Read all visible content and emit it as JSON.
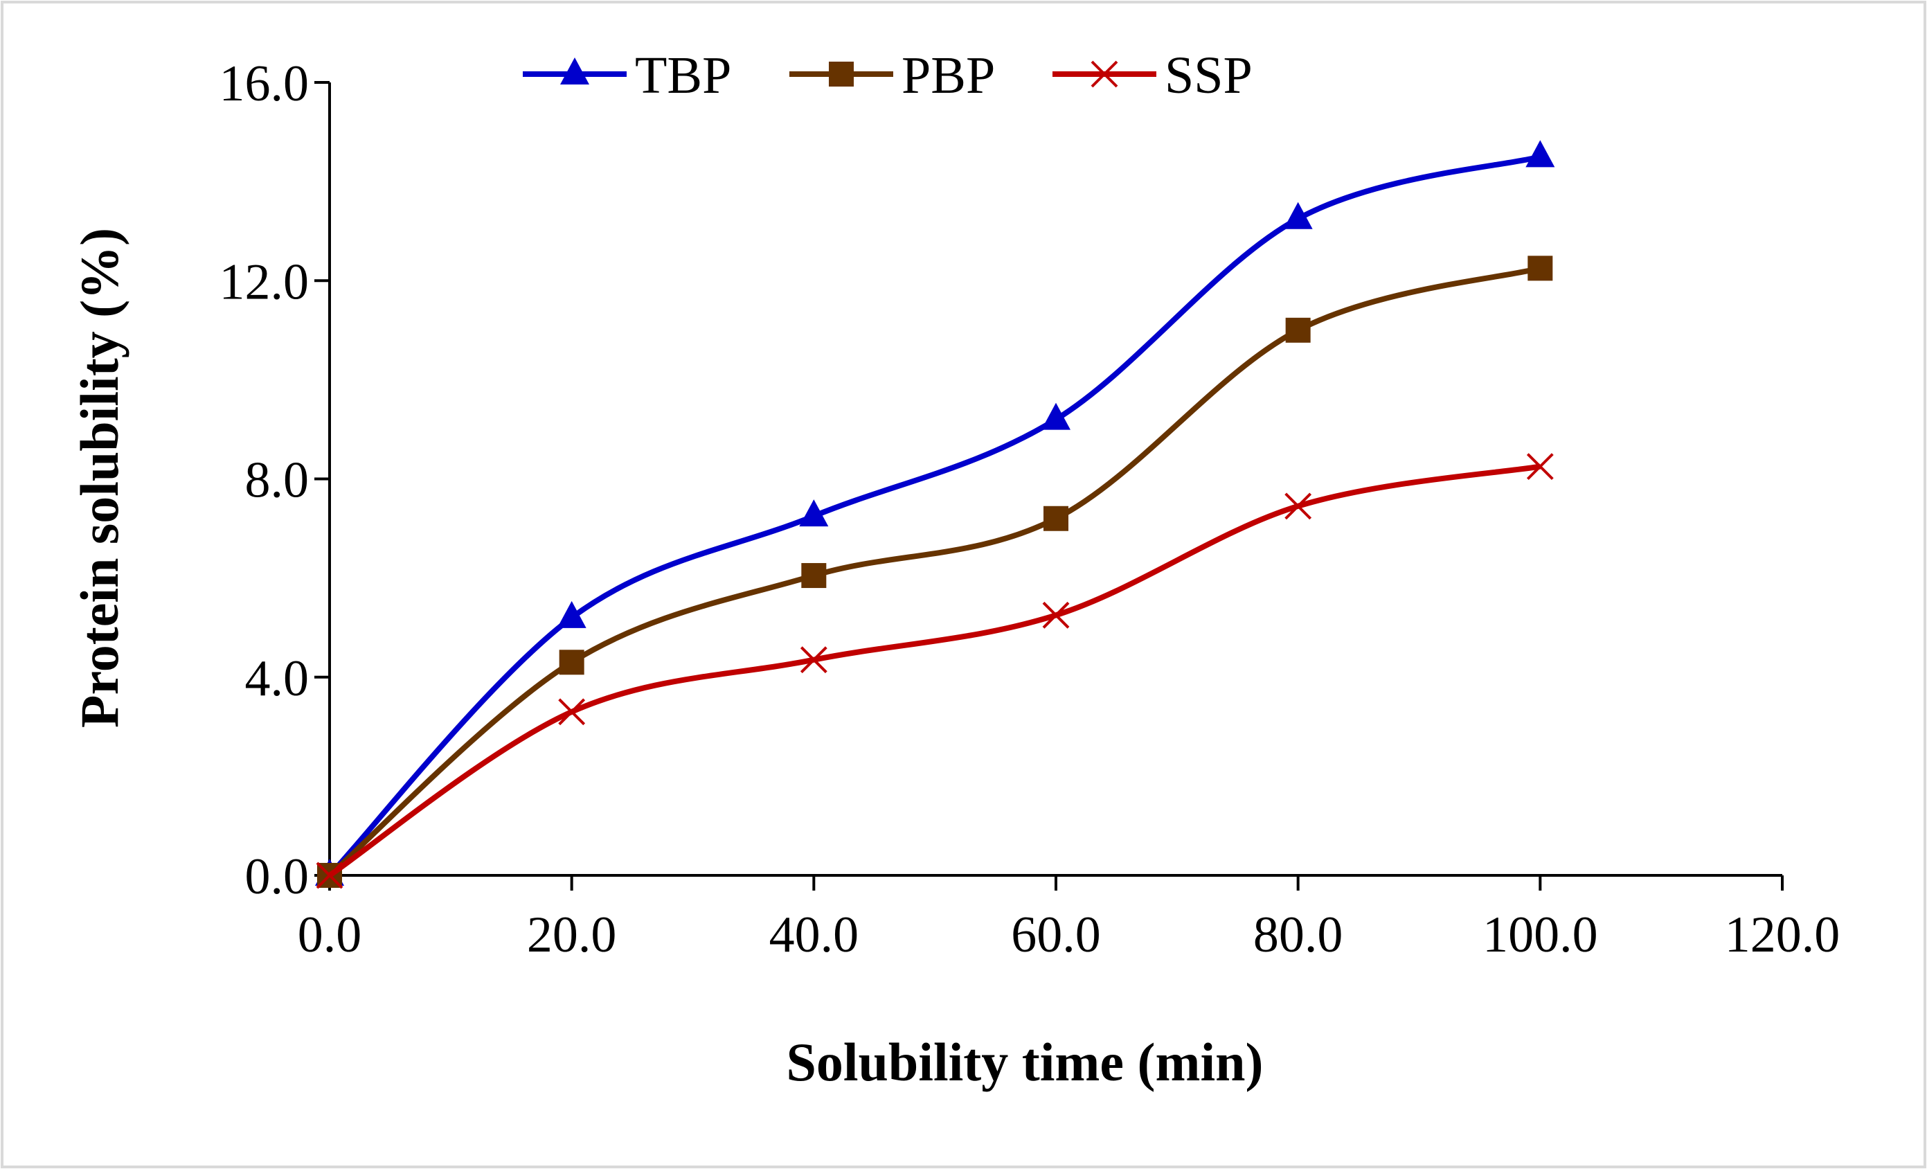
{
  "chart_data": {
    "type": "line",
    "title": "",
    "xlabel": "Solubility time (min)",
    "ylabel": "Protein solubility (%)",
    "xlim": [
      0,
      120
    ],
    "ylim": [
      0,
      16
    ],
    "xticks": [
      "0.0",
      "20.0",
      "40.0",
      "60.0",
      "80.0",
      "100.0",
      "120.0"
    ],
    "yticks": [
      "0.0",
      "4.0",
      "8.0",
      "12.0",
      "16.0"
    ],
    "grid": false,
    "legend_position": "top-center",
    "x": [
      0,
      20,
      40,
      60,
      80,
      100
    ],
    "series": [
      {
        "name": "TBP",
        "color": "#0000CC",
        "marker": "triangle",
        "values": [
          0,
          5.2,
          7.25,
          9.2,
          13.25,
          14.5
        ]
      },
      {
        "name": "PBP",
        "color": "#663300",
        "marker": "square",
        "values": [
          0,
          4.3,
          6.05,
          7.2,
          11.0,
          12.25
        ]
      },
      {
        "name": "SSP",
        "color": "#C00000",
        "marker": "x",
        "values": [
          0,
          3.3,
          4.35,
          5.25,
          7.45,
          8.25
        ]
      }
    ]
  }
}
